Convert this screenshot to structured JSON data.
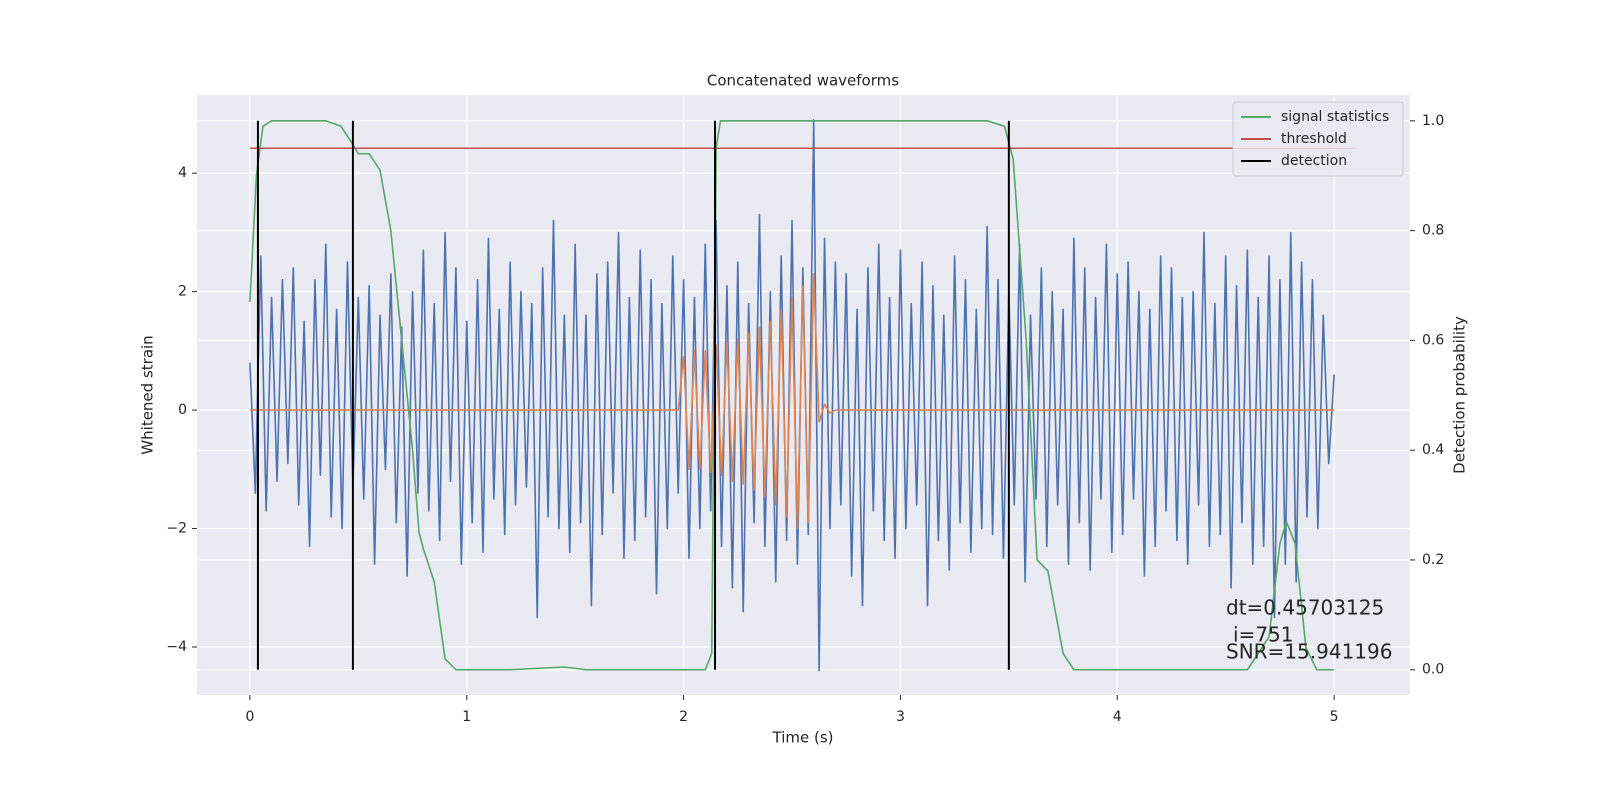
{
  "chart_data": {
    "type": "line",
    "title": "Concatenated waveforms",
    "xlabel": "Time (s)",
    "ylabel": "Whitened strain",
    "y2label": "Detection probability",
    "xlim": [
      -0.244,
      5.35
    ],
    "ylim": [
      -4.81,
      5.32
    ],
    "y2lim": [
      -0.046,
      1.047
    ],
    "xticks": [
      0,
      1,
      2,
      3,
      4,
      5
    ],
    "yticks": [
      {
        "value": -4,
        "label": "−4"
      },
      {
        "value": -2,
        "label": "−2"
      },
      0,
      2,
      4
    ],
    "y2ticks": [
      {
        "value": 0,
        "label": "0.0"
      },
      0.2,
      0.4,
      0.6,
      0.8,
      {
        "value": 1,
        "label": "1.0"
      }
    ],
    "grid": true,
    "legend": "upper right",
    "annotations": [
      "dt=0.45703125",
      "i=751",
      "SNR=15.941196"
    ],
    "series": [
      {
        "color": "#4c72b0",
        "x": [
          0,
          0.025,
          0.05,
          0.075,
          0.1,
          0.125,
          0.15,
          0.175,
          0.2,
          0.225,
          0.25,
          0.275,
          0.3,
          0.325,
          0.35,
          0.375,
          0.4,
          0.425,
          0.45,
          0.475,
          0.5,
          0.525,
          0.55,
          0.575,
          0.6,
          0.625,
          0.65,
          0.675,
          0.7,
          0.725,
          0.75,
          0.775,
          0.8,
          0.825,
          0.85,
          0.875,
          0.9,
          0.925,
          0.95,
          0.975,
          1,
          1.025,
          1.05,
          1.075,
          1.1,
          1.125,
          1.15,
          1.175,
          1.2,
          1.225,
          1.25,
          1.275,
          1.3,
          1.325,
          1.35,
          1.375,
          1.4,
          1.425,
          1.45,
          1.475,
          1.5,
          1.525,
          1.55,
          1.575,
          1.6,
          1.625,
          1.65,
          1.675,
          1.7,
          1.725,
          1.75,
          1.775,
          1.8,
          1.825,
          1.85,
          1.875,
          1.9,
          1.925,
          1.95,
          1.975,
          2,
          2.025,
          2.05,
          2.075,
          2.1,
          2.125,
          2.15,
          2.175,
          2.2,
          2.225,
          2.25,
          2.275,
          2.3,
          2.325,
          2.35,
          2.375,
          2.4,
          2.425,
          2.45,
          2.475,
          2.5,
          2.525,
          2.55,
          2.575,
          2.6,
          2.625,
          2.65,
          2.675,
          2.7,
          2.725,
          2.75,
          2.775,
          2.8,
          2.825,
          2.85,
          2.875,
          2.9,
          2.925,
          2.95,
          2.975,
          3,
          3.025,
          3.05,
          3.075,
          3.1,
          3.125,
          3.15,
          3.175,
          3.2,
          3.225,
          3.25,
          3.275,
          3.3,
          3.325,
          3.35,
          3.375,
          3.4,
          3.425,
          3.45,
          3.475,
          3.5,
          3.525,
          3.55,
          3.575,
          3.6,
          3.625,
          3.65,
          3.675,
          3.7,
          3.725,
          3.75,
          3.775,
          3.8,
          3.825,
          3.85,
          3.875,
          3.9,
          3.925,
          3.95,
          3.975,
          4,
          4.025,
          4.05,
          4.075,
          4.1,
          4.125,
          4.15,
          4.175,
          4.2,
          4.225,
          4.25,
          4.275,
          4.3,
          4.325,
          4.35,
          4.375,
          4.4,
          4.425,
          4.45,
          4.475,
          4.5,
          4.525,
          4.55,
          4.575,
          4.6,
          4.625,
          4.65,
          4.675,
          4.7,
          4.725,
          4.75,
          4.775,
          4.8,
          4.825,
          4.85,
          4.875,
          4.9,
          4.925,
          4.95,
          4.975,
          5
        ],
        "values": [
          0.8,
          -1.4,
          2.6,
          -1.7,
          1.9,
          -1.2,
          2.2,
          -0.9,
          2.4,
          -1.6,
          1.5,
          -2.3,
          2.2,
          -1.1,
          2.8,
          -1.8,
          1.7,
          -2.0,
          2.5,
          -1.3,
          1.9,
          -1.5,
          2.1,
          -2.6,
          1.6,
          -1.0,
          2.3,
          -1.9,
          1.4,
          -2.8,
          2.0,
          -1.4,
          2.7,
          -1.7,
          1.8,
          -2.2,
          3.0,
          -1.2,
          2.4,
          -2.6,
          1.5,
          -1.9,
          2.2,
          -2.4,
          2.9,
          -1.5,
          1.7,
          -2.1,
          2.5,
          -1.6,
          2.0,
          -1.3,
          1.8,
          -3.5,
          2.4,
          -1.8,
          3.2,
          -2.0,
          1.6,
          -2.4,
          2.8,
          -1.9,
          1.6,
          -3.3,
          2.3,
          -2.1,
          2.5,
          -1.4,
          3.0,
          -2.5,
          1.9,
          -2.2,
          2.7,
          -1.8,
          2.2,
          -3.1,
          1.8,
          -2.0,
          2.6,
          -1.4,
          2.2,
          -2.5,
          1.9,
          -2.0,
          2.8,
          -1.7,
          3.2,
          -2.3,
          2.1,
          -3.0,
          2.5,
          -3.4,
          1.8,
          -1.9,
          3.3,
          -2.3,
          2.0,
          -2.9,
          2.6,
          -2.2,
          3.2,
          -2.6,
          2.4,
          -2.1,
          4.9,
          -4.4,
          2.9,
          -2.0,
          2.5,
          -1.6,
          2.3,
          -2.8,
          1.7,
          -3.3,
          2.4,
          -1.7,
          2.8,
          -2.2,
          1.9,
          -2.5,
          2.7,
          -2.0,
          1.8,
          -1.6,
          2.5,
          -3.3,
          2.1,
          -2.2,
          1.6,
          -2.7,
          2.6,
          -1.9,
          2.2,
          -2.4,
          1.7,
          -2.0,
          3.1,
          -2.1,
          2.2,
          -2.5,
          2.0,
          -1.6,
          2.8,
          -2.9,
          1.6,
          -1.5,
          2.4,
          -2.3,
          2.0,
          -1.6,
          1.7,
          -2.6,
          2.9,
          -1.9,
          2.4,
          -2.7,
          1.9,
          -1.5,
          2.8,
          -2.4,
          2.3,
          -2.1,
          2.5,
          -1.5,
          2.0,
          -2.8,
          1.7,
          -2.3,
          2.6,
          -1.7,
          2.4,
          -2.2,
          1.9,
          -2.6,
          2.0,
          -1.6,
          3.0,
          -2.3,
          1.8,
          -2.1,
          2.6,
          -3.0,
          2.1,
          -1.9,
          2.7,
          -2.6,
          1.9,
          -2.3,
          2.6,
          -3.5,
          2.2,
          -2.6,
          3.0,
          -2.9,
          2.5,
          -1.8,
          2.2,
          -2.0,
          1.6,
          -0.9,
          0.6
        ]
      },
      {
        "color": "#dd8452",
        "x": [
          0,
          1.975,
          2,
          2.025,
          2.05,
          2.075,
          2.1,
          2.125,
          2.15,
          2.175,
          2.2,
          2.225,
          2.25,
          2.275,
          2.3,
          2.325,
          2.35,
          2.375,
          2.4,
          2.425,
          2.45,
          2.475,
          2.5,
          2.525,
          2.55,
          2.575,
          2.6,
          2.625,
          2.65,
          2.675,
          2.7,
          5
        ],
        "values": [
          0,
          0,
          0.9,
          -1.0,
          1.0,
          -1.0,
          1.0,
          -1.05,
          1.1,
          -1.1,
          1.15,
          -1.2,
          1.2,
          -1.25,
          1.3,
          -1.35,
          1.4,
          -1.45,
          1.5,
          -1.6,
          1.7,
          -1.8,
          1.9,
          -2.0,
          2.1,
          -1.9,
          2.3,
          -0.2,
          0.1,
          -0.05,
          0,
          0
        ]
      },
      {
        "name": "signal statistics",
        "color": "#55a868",
        "axis": "y2",
        "x": [
          0,
          0.03,
          0.06,
          0.1,
          0.35,
          0.42,
          0.47,
          0.5,
          0.55,
          0.6,
          0.65,
          0.7,
          0.75,
          0.78,
          0.8,
          0.85,
          0.9,
          0.95,
          1.2,
          1.45,
          1.55,
          2.1,
          2.13,
          2.15,
          2.17,
          3.4,
          3.48,
          3.52,
          3.58,
          3.63,
          3.68,
          3.75,
          3.8,
          4.6,
          4.7,
          4.75,
          4.78,
          4.82,
          4.87,
          4.92,
          5
        ],
        "values": [
          0.67,
          0.9,
          0.99,
          1.0,
          1.0,
          0.99,
          0.96,
          0.94,
          0.94,
          0.91,
          0.8,
          0.6,
          0.4,
          0.25,
          0.22,
          0.16,
          0.02,
          0.0,
          0.0,
          0.005,
          0.0,
          0.0,
          0.03,
          0.95,
          1.0,
          1.0,
          0.99,
          0.93,
          0.6,
          0.2,
          0.18,
          0.03,
          0.0,
          0.0,
          0.06,
          0.23,
          0.27,
          0.23,
          0.04,
          0.0,
          0.0
        ]
      },
      {
        "name": "threshold",
        "color": "#c44e52",
        "axis": "y2",
        "x": [
          0,
          5.1
        ],
        "values": [
          0.95,
          0.95
        ]
      },
      {
        "name": "detection",
        "color": "#000000",
        "axis": "y2",
        "style": "vlines",
        "x": [
          0.037,
          0.475,
          2.145,
          3.5
        ],
        "ymin": 0,
        "ymax": 1
      }
    ]
  }
}
